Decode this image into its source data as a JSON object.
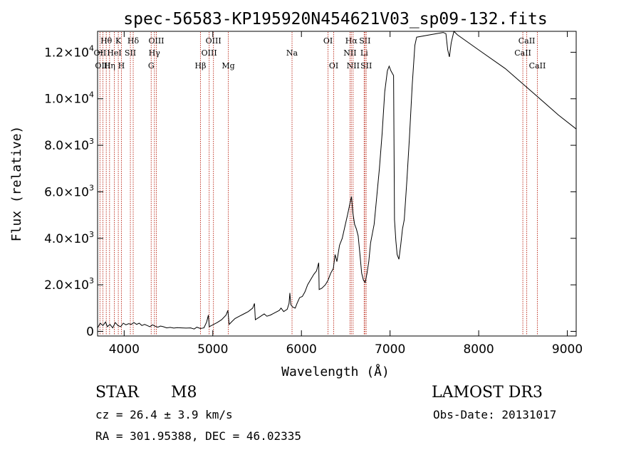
{
  "chart_data": {
    "type": "line",
    "title": "spec-56583-KP195920N454621V03_sp09-132.fits",
    "xlabel": "Wavelength (Å)",
    "ylabel": "Flux (relative)",
    "xlim": [
      3700,
      9100
    ],
    "ylim": [
      -200,
      12900
    ],
    "x_ticks": [
      {
        "value": 4000,
        "label": "4000"
      },
      {
        "value": 5000,
        "label": "5000"
      },
      {
        "value": 6000,
        "label": "6000"
      },
      {
        "value": 7000,
        "label": "7000"
      },
      {
        "value": 8000,
        "label": "8000"
      },
      {
        "value": 9000,
        "label": "9000"
      }
    ],
    "y_ticks": [
      {
        "value": 0,
        "mant": "0",
        "exp": ""
      },
      {
        "value": 2000,
        "mant": "2.0×10",
        "exp": "3"
      },
      {
        "value": 4000,
        "mant": "4.0×10",
        "exp": "3"
      },
      {
        "value": 6000,
        "mant": "6.0×10",
        "exp": "3"
      },
      {
        "value": 8000,
        "mant": "8.0×10",
        "exp": "3"
      },
      {
        "value": 10000,
        "mant": "1.0×10",
        "exp": "4"
      },
      {
        "value": 12000,
        "mant": "1.2×10",
        "exp": "4"
      }
    ],
    "series": [
      {
        "name": "flux",
        "points": [
          [
            3700,
            150
          ],
          [
            3730,
            350
          ],
          [
            3760,
            250
          ],
          [
            3790,
            400
          ],
          [
            3810,
            200
          ],
          [
            3840,
            300
          ],
          [
            3870,
            150
          ],
          [
            3900,
            380
          ],
          [
            3930,
            250
          ],
          [
            3960,
            200
          ],
          [
            3990,
            350
          ],
          [
            4020,
            280
          ],
          [
            4050,
            330
          ],
          [
            4080,
            300
          ],
          [
            4110,
            380
          ],
          [
            4140,
            300
          ],
          [
            4170,
            350
          ],
          [
            4200,
            250
          ],
          [
            4230,
            300
          ],
          [
            4260,
            250
          ],
          [
            4290,
            200
          ],
          [
            4320,
            280
          ],
          [
            4350,
            220
          ],
          [
            4380,
            180
          ],
          [
            4410,
            230
          ],
          [
            4440,
            200
          ],
          [
            4480,
            150
          ],
          [
            4520,
            170
          ],
          [
            4560,
            140
          ],
          [
            4600,
            160
          ],
          [
            4650,
            150
          ],
          [
            4700,
            140
          ],
          [
            4750,
            150
          ],
          [
            4790,
            100
          ],
          [
            4820,
            180
          ],
          [
            4860,
            120
          ],
          [
            4900,
            150
          ],
          [
            4930,
            400
          ],
          [
            4950,
            700
          ],
          [
            4960,
            200
          ],
          [
            5000,
            280
          ],
          [
            5050,
            380
          ],
          [
            5100,
            500
          ],
          [
            5150,
            700
          ],
          [
            5170,
            900
          ],
          [
            5185,
            300
          ],
          [
            5210,
            400
          ],
          [
            5250,
            550
          ],
          [
            5300,
            650
          ],
          [
            5350,
            750
          ],
          [
            5400,
            850
          ],
          [
            5450,
            1000
          ],
          [
            5470,
            1200
          ],
          [
            5480,
            500
          ],
          [
            5520,
            600
          ],
          [
            5560,
            700
          ],
          [
            5580,
            750
          ],
          [
            5610,
            650
          ],
          [
            5650,
            700
          ],
          [
            5700,
            800
          ],
          [
            5750,
            900
          ],
          [
            5770,
            1000
          ],
          [
            5800,
            850
          ],
          [
            5840,
            950
          ],
          [
            5860,
            1200
          ],
          [
            5870,
            1650
          ],
          [
            5880,
            1150
          ],
          [
            5900,
            1050
          ],
          [
            5930,
            1000
          ],
          [
            5950,
            1200
          ],
          [
            5980,
            1450
          ],
          [
            6010,
            1500
          ],
          [
            6040,
            1700
          ],
          [
            6070,
            2000
          ],
          [
            6100,
            2200
          ],
          [
            6140,
            2450
          ],
          [
            6170,
            2600
          ],
          [
            6195,
            2950
          ],
          [
            6200,
            1800
          ],
          [
            6230,
            1850
          ],
          [
            6270,
            2000
          ],
          [
            6300,
            2200
          ],
          [
            6330,
            2500
          ],
          [
            6360,
            2700
          ],
          [
            6380,
            3300
          ],
          [
            6400,
            3000
          ],
          [
            6430,
            3700
          ],
          [
            6460,
            4000
          ],
          [
            6490,
            4500
          ],
          [
            6520,
            5000
          ],
          [
            6550,
            5550
          ],
          [
            6565,
            5800
          ],
          [
            6580,
            5100
          ],
          [
            6600,
            4600
          ],
          [
            6620,
            4400
          ],
          [
            6640,
            4100
          ],
          [
            6660,
            3300
          ],
          [
            6680,
            2500
          ],
          [
            6700,
            2200
          ],
          [
            6720,
            2100
          ],
          [
            6740,
            2500
          ],
          [
            6760,
            3000
          ],
          [
            6780,
            3800
          ],
          [
            6800,
            4200
          ],
          [
            6820,
            4600
          ],
          [
            6850,
            5800
          ],
          [
            6880,
            7000
          ],
          [
            6910,
            8500
          ],
          [
            6940,
            10300
          ],
          [
            6970,
            11200
          ],
          [
            6990,
            11400
          ],
          [
            7010,
            11200
          ],
          [
            7040,
            11000
          ],
          [
            7050,
            4800
          ],
          [
            7065,
            3900
          ],
          [
            7080,
            3300
          ],
          [
            7100,
            3100
          ],
          [
            7120,
            3700
          ],
          [
            7140,
            4400
          ],
          [
            7160,
            4800
          ],
          [
            7190,
            6500
          ],
          [
            7220,
            8400
          ],
          [
            7250,
            10600
          ],
          [
            7280,
            12300
          ],
          [
            7300,
            12650
          ],
          [
            7450,
            12750
          ],
          [
            7600,
            12850
          ],
          [
            7630,
            12800
          ],
          [
            7650,
            12100
          ],
          [
            7670,
            11800
          ],
          [
            7690,
            12400
          ],
          [
            7720,
            12900
          ],
          [
            7760,
            12750
          ],
          [
            8000,
            12100
          ],
          [
            8300,
            11300
          ],
          [
            8600,
            10300
          ],
          [
            8900,
            9300
          ],
          [
            9100,
            8700
          ]
        ]
      }
    ],
    "line_markers": [
      {
        "label": "Hθ",
        "x": 3798,
        "row": 1
      },
      {
        "label": "OII",
        "x": 3727,
        "row": 2
      },
      {
        "label": "OIII",
        "x": 3760,
        "row": 3
      },
      {
        "label": "K",
        "x": 3934,
        "row": 1
      },
      {
        "label": "HeI",
        "x": 3889,
        "row": 2
      },
      {
        "label": "Hη",
        "x": 3835,
        "row": 3
      },
      {
        "label": "SII",
        "x": 4070,
        "row": 2
      },
      {
        "label": "H",
        "x": 3969,
        "row": 3
      },
      {
        "label": "Hδ",
        "x": 4102,
        "row": 1
      },
      {
        "label": "OIII",
        "x": 4363,
        "row": 1
      },
      {
        "label": "Hγ",
        "x": 4341,
        "row": 2
      },
      {
        "label": "G",
        "x": 4305,
        "row": 3
      },
      {
        "label": "OIII",
        "x": 5007,
        "row": 1
      },
      {
        "label": "OIII",
        "x": 4959,
        "row": 2
      },
      {
        "label": "Hβ",
        "x": 4861,
        "row": 3
      },
      {
        "label": "Mg",
        "x": 5175,
        "row": 3
      },
      {
        "label": "Na",
        "x": 5894,
        "row": 2
      },
      {
        "label": "OI",
        "x": 6300,
        "row": 1
      },
      {
        "label": "OI",
        "x": 6364,
        "row": 3
      },
      {
        "label": "Hα",
        "x": 6563,
        "row": 1
      },
      {
        "label": "SII",
        "x": 6716,
        "row": 1
      },
      {
        "label": "NII",
        "x": 6548,
        "row": 2
      },
      {
        "label": "Li",
        "x": 6708,
        "row": 2
      },
      {
        "label": "NII",
        "x": 6583,
        "row": 3
      },
      {
        "label": "SII",
        "x": 6731,
        "row": 3
      },
      {
        "label": "CaII",
        "x": 8542,
        "row": 1
      },
      {
        "label": "CaII",
        "x": 8498,
        "row": 2
      },
      {
        "label": "CaII",
        "x": 8662,
        "row": 3
      }
    ]
  },
  "info": {
    "object_class": "STAR",
    "subclass": "M8",
    "survey": "LAMOST DR3",
    "redshift": "cz = 26.4 ± 3.9 km/s",
    "obs_date": "Obs-Date: 20131017",
    "coords": "RA = 301.95388, DEC =  46.02335"
  }
}
